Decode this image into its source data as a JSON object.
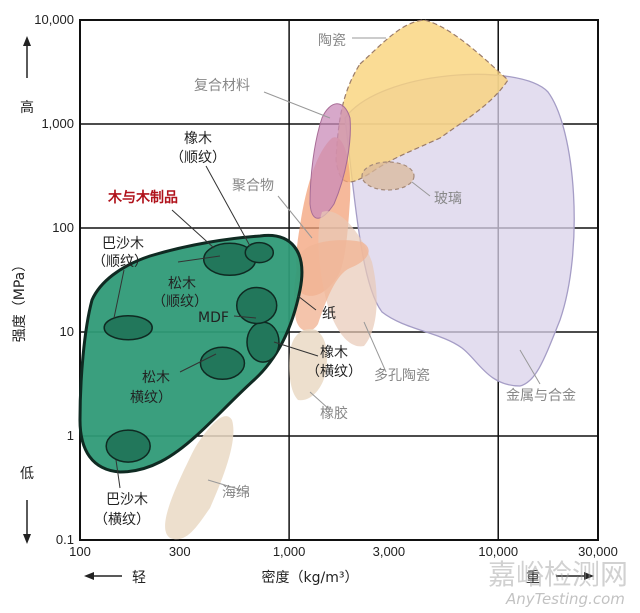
{
  "chart_data": {
    "type": "bubble-region",
    "xlabel": "密度（kg/m³）",
    "ylabel": "强度（MPa）",
    "x_scale": "log",
    "y_scale": "log",
    "xlim": [
      100,
      30000
    ],
    "ylim": [
      0.1,
      10000
    ],
    "x_ticks": [
      "100",
      "300",
      "1,000",
      "3,000",
      "10,000",
      "30,000"
    ],
    "y_ticks": [
      "10,000",
      "1,000",
      "100",
      "10",
      "1",
      "0.1"
    ],
    "grid": true,
    "axis_hints": {
      "y_high": "高",
      "y_low": "低",
      "x_light": "轻",
      "x_heavy": "重"
    },
    "highlight_label": "木与木制品",
    "regions": [
      {
        "name": "陶瓷",
        "color": "#f9d37a"
      },
      {
        "name": "复合材料",
        "color": "#c98bb8"
      },
      {
        "name": "聚合物",
        "color": "#f3a27a"
      },
      {
        "name": "玻璃",
        "color": "#d9b89b"
      },
      {
        "name": "金属与合金",
        "color": "#d9d2ea"
      },
      {
        "name": "纸",
        "color": "#f1b596"
      },
      {
        "name": "多孔陶瓷",
        "color": "#e8c9b6"
      },
      {
        "name": "橡胶",
        "color": "#ead9c4"
      },
      {
        "name": "海绵",
        "color": "#ead9c4"
      },
      {
        "name": "木与木制品",
        "color": "#2f9a77"
      }
    ],
    "wood_items": [
      {
        "name": "巴沙木（顺纹）",
        "x": 170,
        "y": 11
      },
      {
        "name": "巴沙木（横纹）",
        "x": 170,
        "y": 0.8
      },
      {
        "name": "松木（顺纹）",
        "x": 520,
        "y": 50
      },
      {
        "name": "松木（横纹）",
        "x": 480,
        "y": 5
      },
      {
        "name": "橡木（顺纹）",
        "x": 720,
        "y": 58
      },
      {
        "name": "橡木（横纹）",
        "x": 750,
        "y": 8
      },
      {
        "name": "MDF",
        "x": 700,
        "y": 18
      }
    ],
    "annotations": [
      {
        "text": "陶瓷",
        "color": "#888888"
      },
      {
        "text": "复合材料",
        "color": "#888888"
      },
      {
        "text": "橡木",
        "color": "#222222"
      },
      {
        "text": "（顺纹）",
        "color": "#222222"
      },
      {
        "text": "聚合物",
        "color": "#888888"
      },
      {
        "text": "木与木制品",
        "color": "#b0121b"
      },
      {
        "text": "巴沙木",
        "color": "#222222"
      },
      {
        "text": "（顺纹）",
        "color": "#222222"
      },
      {
        "text": "松木",
        "color": "#222222"
      },
      {
        "text": "（顺纹）",
        "color": "#222222"
      },
      {
        "text": "MDF",
        "color": "#222222"
      },
      {
        "text": "纸",
        "color": "#222222"
      },
      {
        "text": "橡木",
        "color": "#222222"
      },
      {
        "text": "（横纹）",
        "color": "#222222"
      },
      {
        "text": "松木",
        "color": "#222222"
      },
      {
        "text": "横纹）",
        "color": "#222222"
      },
      {
        "text": "玻璃",
        "color": "#888888"
      },
      {
        "text": "多孔陶瓷",
        "color": "#888888"
      },
      {
        "text": "金属与合金",
        "color": "#888888"
      },
      {
        "text": "橡胶",
        "color": "#888888"
      },
      {
        "text": "海绵",
        "color": "#888888"
      },
      {
        "text": "巴沙木",
        "color": "#222222"
      },
      {
        "text": "（横纹）",
        "color": "#222222"
      }
    ]
  },
  "watermark": {
    "line1": "嘉峪检测网",
    "line2": "AnyTesting.com"
  }
}
